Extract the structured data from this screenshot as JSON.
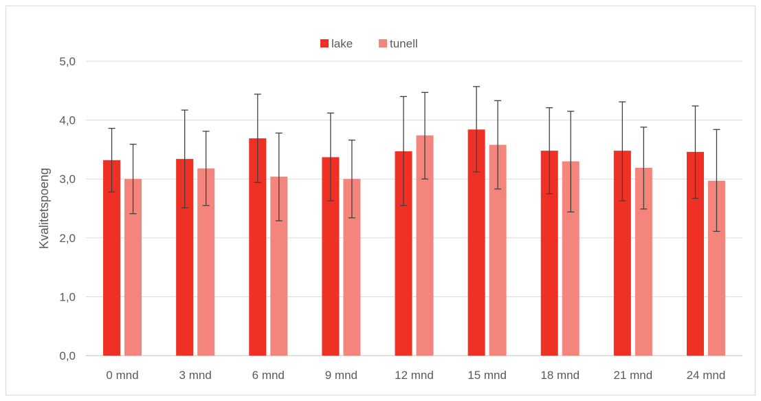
{
  "chart_data": {
    "type": "bar",
    "title": "",
    "xlabel": "",
    "ylabel": "Kvalitetspoeng",
    "ylim": [
      0,
      5
    ],
    "yticks": [
      "0,0",
      "1,0",
      "2,0",
      "3,0",
      "4,0",
      "5,0"
    ],
    "grid": true,
    "legend_position": "top-center",
    "categories": [
      "0 mnd",
      "3 mnd",
      "6 mnd",
      "9 mnd",
      "12 mnd",
      "15 mnd",
      "18 mnd",
      "21 mnd",
      "24 mnd"
    ],
    "series": [
      {
        "name": "lake",
        "color": "#ee3124",
        "values": [
          3.32,
          3.34,
          3.69,
          3.37,
          3.47,
          3.84,
          3.48,
          3.48,
          3.46
        ],
        "error_low": [
          2.78,
          2.51,
          2.94,
          2.63,
          2.55,
          3.12,
          2.75,
          2.63,
          2.67
        ],
        "error_high": [
          3.86,
          4.17,
          4.44,
          4.12,
          4.4,
          4.57,
          4.21,
          4.31,
          4.24
        ]
      },
      {
        "name": "tunell",
        "color": "#f4857c",
        "values": [
          3.0,
          3.18,
          3.04,
          3.0,
          3.74,
          3.58,
          3.3,
          3.19,
          2.97
        ],
        "error_low": [
          2.41,
          2.55,
          2.29,
          2.34,
          3.0,
          2.83,
          2.44,
          2.49,
          2.11
        ],
        "error_high": [
          3.59,
          3.81,
          3.78,
          3.66,
          4.47,
          4.33,
          4.15,
          3.88,
          3.84
        ]
      }
    ]
  }
}
